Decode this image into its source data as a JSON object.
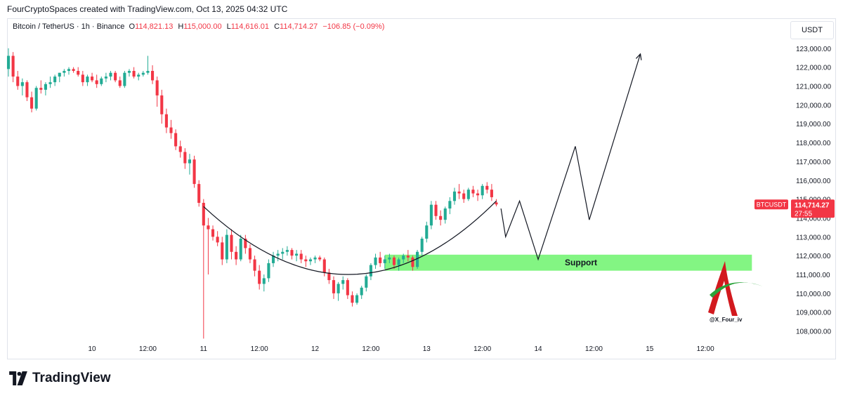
{
  "header": {
    "attribution": "FourCryptoSpaces created with TradingView.com, Oct 13, 2025 04:32 UTC"
  },
  "legend": {
    "symbol": "Bitcoin / TetherUS · 1h · Binance",
    "o_label": "O",
    "o_value": "114,821.13",
    "h_label": "H",
    "h_value": "115,000.00",
    "l_label": "L",
    "l_value": "114,616.01",
    "c_label": "C",
    "c_value": "114,714.27",
    "change": "−106.85 (−0.09%)"
  },
  "currency": "USDT",
  "price_tag": {
    "symbol": "BTCUSDT",
    "price": "114,714.27",
    "countdown": "27:55"
  },
  "support_label": "Support",
  "watermark_handle": "@X_Four_iv",
  "footer": {
    "brand": "TradingView"
  },
  "colors": {
    "up": "#22ab94",
    "down": "#f23645",
    "support_zone": "#7cf47c",
    "tag": "#f23645"
  },
  "chart_data": {
    "type": "candlestick",
    "symbol": "BTCUSDT",
    "interval": "1h",
    "ylim": [
      107500,
      123700
    ],
    "y_ticks": [
      108000,
      109000,
      110000,
      111000,
      112000,
      113000,
      114000,
      115000,
      116000,
      117000,
      118000,
      119000,
      120000,
      121000,
      122000,
      123000
    ],
    "y_tick_labels": [
      "108,000.00",
      "109,000.00",
      "110,000.00",
      "111,000.00",
      "112,000.00",
      "113,000.00",
      "114,000.00",
      "115,000.00",
      "116,000.00",
      "117,000.00",
      "118,000.00",
      "119,000.00",
      "120,000.00",
      "121,000.00",
      "122,000.00",
      "123,000.00"
    ],
    "x_range": [
      -18,
      148
    ],
    "x_ticks": [
      0,
      12,
      24,
      36,
      48,
      60,
      72,
      84,
      96,
      108,
      120,
      132
    ],
    "x_tick_labels": [
      "10",
      "12:00",
      "11",
      "12:00",
      "12",
      "12:00",
      "13",
      "12:00",
      "14",
      "12:00",
      "15",
      "12:00"
    ],
    "candles": [
      [
        -18,
        121900,
        123000,
        121500,
        122600
      ],
      [
        -17,
        122600,
        122800,
        121200,
        121500
      ],
      [
        -16,
        121500,
        121800,
        120800,
        121000
      ],
      [
        -15,
        121000,
        121400,
        120500,
        121200
      ],
      [
        -14,
        121200,
        121300,
        120200,
        120400
      ],
      [
        -13,
        120400,
        120700,
        119600,
        119800
      ],
      [
        -12,
        119800,
        121000,
        119700,
        120900
      ],
      [
        -11,
        120900,
        121300,
        120600,
        120800
      ],
      [
        -10,
        120800,
        121200,
        120500,
        121100
      ],
      [
        -9,
        121100,
        121500,
        120900,
        121200
      ],
      [
        -8,
        121200,
        121600,
        121000,
        121500
      ],
      [
        -7,
        121500,
        121700,
        121200,
        121700
      ],
      [
        -6,
        121700,
        121900,
        121500,
        121800
      ],
      [
        -5,
        121800,
        122000,
        121600,
        121900
      ],
      [
        -4,
        121900,
        122000,
        121700,
        121800
      ],
      [
        -3,
        121800,
        122000,
        121500,
        121600
      ],
      [
        -2,
        121600,
        121800,
        121000,
        121200
      ],
      [
        -1,
        121200,
        121600,
        121000,
        121500
      ],
      [
        0,
        121500,
        121700,
        121200,
        121300
      ],
      [
        1,
        121300,
        121600,
        120900,
        121100
      ],
      [
        2,
        121100,
        121500,
        121000,
        121400
      ],
      [
        3,
        121400,
        121700,
        121200,
        121500
      ],
      [
        4,
        121500,
        121800,
        121300,
        121700
      ],
      [
        5,
        121700,
        121800,
        121200,
        121300
      ],
      [
        6,
        121300,
        121500,
        120900,
        121000
      ],
      [
        7,
        121000,
        121800,
        120900,
        121700
      ],
      [
        8,
        121700,
        121900,
        121500,
        121800
      ],
      [
        9,
        121800,
        122000,
        121400,
        121500
      ],
      [
        10,
        121500,
        121700,
        121300,
        121600
      ],
      [
        11,
        121600,
        121800,
        121500,
        121700
      ],
      [
        12,
        121700,
        122600,
        121600,
        121800
      ],
      [
        13,
        121800,
        122100,
        121100,
        121300
      ],
      [
        14,
        121300,
        121500,
        119900,
        120500
      ],
      [
        15,
        120500,
        120800,
        119000,
        119500
      ],
      [
        16,
        119500,
        119800,
        118500,
        118800
      ],
      [
        17,
        118800,
        119200,
        118200,
        118500
      ],
      [
        18,
        118500,
        118700,
        117600,
        117800
      ],
      [
        19,
        117800,
        118100,
        117200,
        117500
      ],
      [
        20,
        117500,
        117700,
        116600,
        116900
      ],
      [
        21,
        116900,
        117400,
        116300,
        117100
      ],
      [
        22,
        117100,
        117300,
        115600,
        115800
      ],
      [
        23,
        115800,
        116000,
        114600,
        114800
      ],
      [
        24,
        114800,
        115000,
        107600,
        113600
      ],
      [
        25,
        113600,
        114000,
        111000,
        113400
      ],
      [
        26,
        113400,
        113600,
        112800,
        113000
      ],
      [
        27,
        113000,
        113300,
        112500,
        112700
      ],
      [
        28,
        112700,
        113000,
        111500,
        111800
      ],
      [
        29,
        111800,
        113400,
        111600,
        113100
      ],
      [
        30,
        113100,
        113400,
        111800,
        112200
      ],
      [
        31,
        112200,
        112500,
        111500,
        111800
      ],
      [
        32,
        111800,
        113100,
        111700,
        112900
      ],
      [
        33,
        112900,
        113100,
        112100,
        112400
      ],
      [
        34,
        112400,
        112600,
        111600,
        111800
      ],
      [
        35,
        111800,
        112000,
        110900,
        111200
      ],
      [
        36,
        111200,
        111500,
        110200,
        110500
      ],
      [
        37,
        110500,
        111000,
        110100,
        110800
      ],
      [
        38,
        110800,
        111800,
        110600,
        111600
      ],
      [
        39,
        111600,
        112200,
        111400,
        112000
      ],
      [
        40,
        112000,
        112300,
        111700,
        112100
      ],
      [
        41,
        112100,
        112400,
        111800,
        112200
      ],
      [
        42,
        112200,
        112500,
        112000,
        112300
      ],
      [
        43,
        112300,
        112400,
        111800,
        112000
      ],
      [
        44,
        112000,
        112300,
        111700,
        112100
      ],
      [
        45,
        112100,
        112300,
        111600,
        111800
      ],
      [
        46,
        111800,
        112000,
        111400,
        111700
      ],
      [
        47,
        111700,
        111900,
        111500,
        111800
      ],
      [
        48,
        111800,
        112000,
        111600,
        111900
      ],
      [
        49,
        111900,
        112000,
        111700,
        111800
      ],
      [
        50,
        111800,
        111900,
        110900,
        111100
      ],
      [
        51,
        111100,
        111300,
        110500,
        110700
      ],
      [
        52,
        110700,
        110900,
        109700,
        110000
      ],
      [
        53,
        110000,
        110600,
        109600,
        110500
      ],
      [
        54,
        110500,
        110900,
        110200,
        110700
      ],
      [
        55,
        110700,
        110800,
        109700,
        109900
      ],
      [
        56,
        109900,
        110100,
        109300,
        109500
      ],
      [
        57,
        109500,
        110000,
        109400,
        109900
      ],
      [
        58,
        109900,
        110400,
        109700,
        110300
      ],
      [
        59,
        110300,
        111000,
        110100,
        110900
      ],
      [
        60,
        110900,
        111600,
        110700,
        111500
      ],
      [
        61,
        111500,
        112100,
        111300,
        111900
      ],
      [
        62,
        111900,
        112200,
        111400,
        111600
      ],
      [
        63,
        111600,
        112000,
        111300,
        111800
      ],
      [
        64,
        111800,
        112100,
        111600,
        111900
      ],
      [
        65,
        111900,
        112000,
        111300,
        111500
      ],
      [
        66,
        111500,
        111900,
        111200,
        111800
      ],
      [
        67,
        111800,
        112100,
        111600,
        112000
      ],
      [
        68,
        112000,
        112300,
        111700,
        111900
      ],
      [
        69,
        111900,
        112000,
        111200,
        111400
      ],
      [
        70,
        111400,
        112300,
        111300,
        112200
      ],
      [
        71,
        112200,
        113000,
        112000,
        112900
      ],
      [
        72,
        112900,
        113800,
        112700,
        113600
      ],
      [
        73,
        113600,
        114900,
        113400,
        114700
      ],
      [
        74,
        114700,
        114900,
        113900,
        114100
      ],
      [
        75,
        114100,
        114400,
        113600,
        113900
      ],
      [
        76,
        113900,
        114600,
        113700,
        114500
      ],
      [
        77,
        114500,
        115100,
        114200,
        114900
      ],
      [
        78,
        114900,
        115600,
        114700,
        115400
      ],
      [
        79,
        115400,
        115800,
        115000,
        115300
      ],
      [
        80,
        115300,
        115500,
        114800,
        115000
      ],
      [
        81,
        115000,
        115600,
        114900,
        115500
      ],
      [
        82,
        115500,
        115700,
        115100,
        115300
      ],
      [
        83,
        115300,
        115500,
        114900,
        115200
      ],
      [
        84,
        115200,
        115800,
        115000,
        115700
      ],
      [
        85,
        115700,
        115900,
        115300,
        115500
      ],
      [
        86,
        115500,
        115800,
        114900,
        115100
      ],
      [
        87,
        114821.13,
        115000,
        114616.01,
        114714.27
      ]
    ],
    "annotations": {
      "projection_path": [
        [
          88,
          114500
        ],
        [
          89,
          113000
        ],
        [
          92,
          114900
        ],
        [
          96,
          111800
        ],
        [
          104,
          117800
        ],
        [
          107,
          113900
        ],
        [
          118,
          122700
        ]
      ],
      "support_zone": {
        "x": [
          63,
          142
        ],
        "y": [
          111200,
          112050
        ]
      },
      "arc_curve": [
        [
          24,
          114600
        ],
        [
          56,
          109300
        ],
        [
          87,
          114900
        ]
      ]
    }
  }
}
